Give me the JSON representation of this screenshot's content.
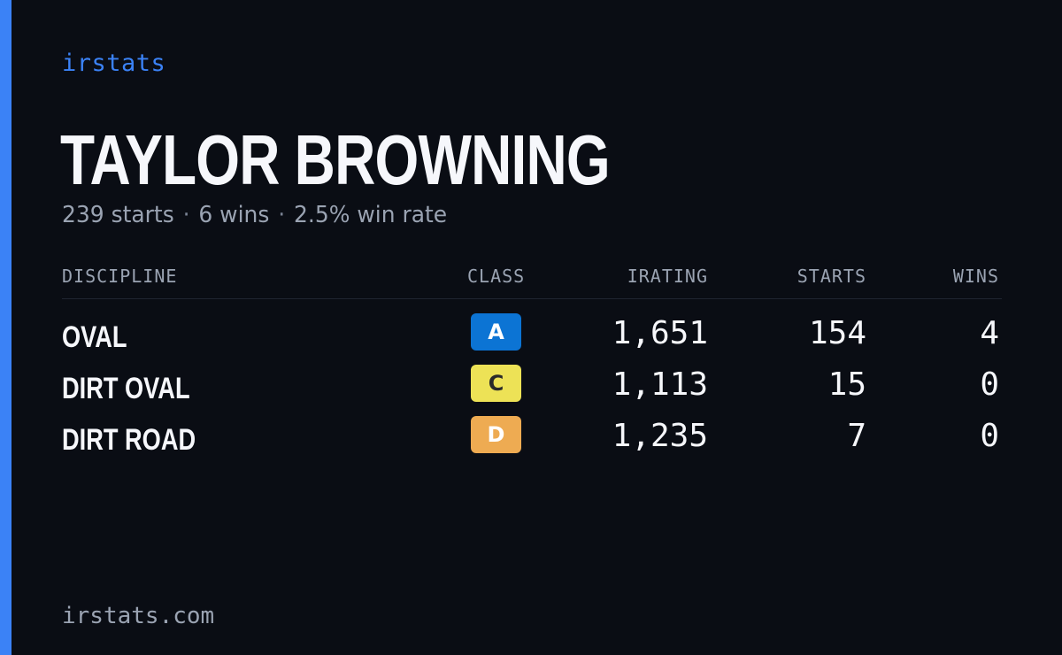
{
  "brand": "irstats",
  "driver": {
    "name": "TAYLOR BROWNING",
    "starts_text": "239 starts",
    "wins_text": "6 wins",
    "win_rate_text": "2.5% win rate",
    "separator": "·"
  },
  "table": {
    "headers": {
      "discipline": "DISCIPLINE",
      "class": "CLASS",
      "irating": "IRATING",
      "starts": "STARTS",
      "wins": "WINS"
    },
    "rows": [
      {
        "discipline": "OVAL",
        "class": "A",
        "class_color": "#0c74d4",
        "class_text_color": "#ffffff",
        "irating": "1,651",
        "starts": "154",
        "wins": "4"
      },
      {
        "discipline": "DIRT OVAL",
        "class": "C",
        "class_color": "#ede256",
        "class_text_color": "#2a2a2a",
        "irating": "1,113",
        "starts": "15",
        "wins": "0"
      },
      {
        "discipline": "DIRT ROAD",
        "class": "D",
        "class_color": "#eeab52",
        "class_text_color": "#ffffff",
        "irating": "1,235",
        "starts": "7",
        "wins": "0"
      }
    ]
  },
  "footer": "irstats.com",
  "colors": {
    "background": "#0a0d14",
    "accent": "#3b82f6",
    "text_primary": "#f6f7fb",
    "text_muted": "#9aa3b2"
  }
}
